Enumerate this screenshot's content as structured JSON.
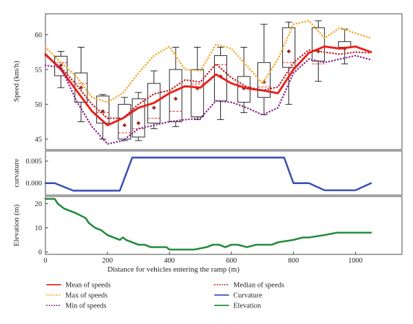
{
  "chart_data": [
    {
      "panel": "speed",
      "type": "line",
      "ylabel": "Speed (km/h)",
      "ylim": [
        43.5,
        63
      ],
      "yticks": [
        "45",
        "50",
        "55",
        "60"
      ],
      "ytick_values": [
        45,
        50,
        55,
        60
      ],
      "x": [
        0,
        50,
        100,
        150,
        200,
        250,
        300,
        350,
        400,
        450,
        500,
        550,
        600,
        650,
        700,
        750,
        800,
        850,
        900,
        950,
        1000,
        1050
      ],
      "series": [
        {
          "name": "Mean of speeds",
          "color": "#e8211a",
          "style": "solid",
          "values": [
            57.2,
            55.0,
            52.0,
            49.0,
            47.0,
            48.0,
            49.5,
            50.2,
            51.6,
            52.6,
            52.4,
            54.3,
            53.0,
            52.3,
            52.0,
            51.6,
            55.0,
            57.4,
            58.3,
            58.0,
            58.3,
            57.5
          ]
        },
        {
          "name": "Max of speeds",
          "color": "#f5a623",
          "style": "dotted",
          "values": [
            58.2,
            56.0,
            54.0,
            51.0,
            50.3,
            51.6,
            54.5,
            57.0,
            58.3,
            55.0,
            54.8,
            58.6,
            58.0,
            55.5,
            53.0,
            56.5,
            61.5,
            62.0,
            59.5,
            61.0,
            60.2,
            59.5
          ]
        },
        {
          "name": "Min of speeds",
          "color": "#8b2a8e",
          "style": "dotted",
          "values": [
            55.6,
            55.3,
            50.5,
            46.8,
            44.3,
            44.8,
            46.5,
            47.0,
            47.5,
            47.8,
            48.0,
            50.5,
            50.3,
            49.5,
            48.5,
            49.5,
            54.5,
            56.5,
            56.0,
            56.5,
            57.0,
            56.4
          ]
        },
        {
          "name": "Median of speeds",
          "color": "#c0282d",
          "style": "dotted",
          "values": [
            57.0,
            55.3,
            52.8,
            50.0,
            48.0,
            48.0,
            50.0,
            51.5,
            52.0,
            53.5,
            53.2,
            55.8,
            53.8,
            52.5,
            52.0,
            52.5,
            56.0,
            57.8,
            57.5,
            57.2,
            57.5,
            57.4
          ]
        }
      ],
      "boxes": {
        "x": [
          50,
          115,
          185,
          255,
          300,
          350,
          420,
          490,
          565,
          640,
          705,
          785,
          880,
          965
        ],
        "whisker_low": [
          52.4,
          47.5,
          45.0,
          44.8,
          44.8,
          46.5,
          46.8,
          47.8,
          47.8,
          48.8,
          48.5,
          50.0,
          53.3,
          55.8
        ],
        "q1": [
          54.1,
          50.3,
          47.3,
          45.0,
          45.3,
          47.3,
          47.5,
          48.2,
          50.5,
          50.3,
          51.0,
          55.3,
          56.2,
          58.2
        ],
        "median": [
          56.0,
          53.0,
          48.8,
          45.9,
          46.5,
          48.0,
          49.0,
          52.9,
          55.7,
          52.5,
          52.5,
          56.0,
          55.8,
          58.2
        ],
        "mean": [
          55.6,
          52.4,
          49.0,
          47.0,
          47.3,
          49.5,
          50.8,
          52.3,
          54.0,
          52.3,
          53.2,
          57.6,
          57.6,
          58.0
        ],
        "q3": [
          56.9,
          54.5,
          51.2,
          50.0,
          50.8,
          53.0,
          55.0,
          55.0,
          57.0,
          54.0,
          56.0,
          61.0,
          61.0,
          59.0
        ],
        "whisker_high": [
          57.6,
          58.2,
          51.4,
          51.0,
          51.7,
          54.8,
          58.2,
          58.2,
          58.2,
          58.2,
          61.5,
          61.8,
          62.0,
          60.8
        ]
      }
    },
    {
      "panel": "curvature",
      "type": "line",
      "ylabel": "curvature",
      "ylim": [
        -0.0027,
        0.0073
      ],
      "yticks": [
        "0.000",
        "0.005"
      ],
      "ytick_values": [
        0,
        0.005
      ],
      "series": [
        {
          "name": "Curvature",
          "color": "#3a4fb3",
          "x": [
            0,
            30,
            90,
            150,
            240,
            280,
            360,
            500,
            650,
            770,
            800,
            850,
            900,
            1000,
            1050
          ],
          "values": [
            0.0,
            0.0,
            -0.0017,
            -0.0017,
            -0.0017,
            0.0058,
            0.0058,
            0.0058,
            0.0058,
            0.0058,
            0.0,
            0.0,
            -0.0016,
            -0.0016,
            0.0
          ]
        }
      ]
    },
    {
      "panel": "elevation",
      "type": "line",
      "ylabel": "Elevation (m)",
      "xlabel": "Distance for vehicles entering the ramp (m)",
      "ylim": [
        -1,
        23
      ],
      "yticks": [
        "0",
        "10",
        "20"
      ],
      "ytick_values": [
        0,
        10,
        20
      ],
      "xlim": [
        0,
        1150
      ],
      "xticks": [
        "0",
        "200",
        "400",
        "600",
        "800",
        "1000"
      ],
      "xtick_values": [
        0,
        200,
        400,
        600,
        800,
        1000
      ],
      "series": [
        {
          "name": "Elevation",
          "color": "#1f8a3a",
          "x": [
            0,
            30,
            40,
            60,
            80,
            100,
            115,
            130,
            140,
            150,
            160,
            180,
            200,
            220,
            240,
            250,
            260,
            280,
            300,
            320,
            340,
            360,
            390,
            400,
            420,
            450,
            480,
            520,
            540,
            560,
            580,
            600,
            620,
            650,
            680,
            700,
            730,
            750,
            800,
            830,
            850,
            900,
            940,
            1000,
            1050
          ],
          "values": [
            22,
            22,
            20,
            18,
            17,
            16,
            15,
            14,
            12,
            11,
            10,
            9,
            7,
            6,
            5,
            6,
            5,
            4,
            3,
            3,
            2,
            2,
            2,
            1,
            1,
            1,
            1,
            2,
            3,
            3,
            2,
            3,
            3,
            2,
            3,
            3,
            3,
            4,
            5,
            6,
            6,
            7,
            8,
            8,
            8
          ]
        }
      ]
    }
  ],
  "legend": {
    "items": [
      {
        "label": "Mean of speeds",
        "color": "#e8211a",
        "style": "solid"
      },
      {
        "label": "Median of speeds",
        "color": "#c0282d",
        "style": "dotted"
      },
      {
        "label": "Max of speeds",
        "color": "#f5a623",
        "style": "dotted"
      },
      {
        "label": "Curvature",
        "color": "#3a4fb3",
        "style": "solid"
      },
      {
        "label": "Min of speeds",
        "color": "#8b2a8e",
        "style": "dotted"
      },
      {
        "label": "Elevation",
        "color": "#1f8a3a",
        "style": "solid"
      }
    ]
  }
}
